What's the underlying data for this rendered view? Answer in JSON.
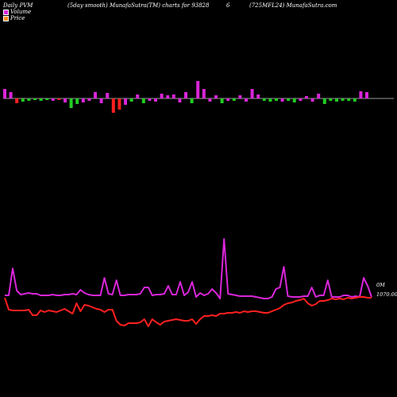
{
  "header": {
    "left": "Daily PVM",
    "center": "(5day smooth) MunafaSutra(TM) charts for 93828",
    "code": "6",
    "right": "(725MFL24) MunafaSutra.com"
  },
  "legend": {
    "volume_label": "Volume",
    "price_label": "Price",
    "volume_color": "#d926d9",
    "price_color": "#ff8c1a"
  },
  "chart_data": {
    "type": "bar",
    "baseline_note": "volume bars drawn above/below a zero line; magenta up, green down, red down-price",
    "volume_bars": [
      {
        "v": 12,
        "c": "magenta"
      },
      {
        "v": 8,
        "c": "magenta"
      },
      {
        "v": -6,
        "c": "red"
      },
      {
        "v": -4,
        "c": "green"
      },
      {
        "v": -3,
        "c": "green"
      },
      {
        "v": -2,
        "c": "green"
      },
      {
        "v": -3,
        "c": "green"
      },
      {
        "v": -2,
        "c": "green"
      },
      {
        "v": -3,
        "c": "magenta"
      },
      {
        "v": -2,
        "c": "red"
      },
      {
        "v": -5,
        "c": "magenta"
      },
      {
        "v": -12,
        "c": "green"
      },
      {
        "v": -7,
        "c": "green"
      },
      {
        "v": -5,
        "c": "magenta"
      },
      {
        "v": -3,
        "c": "magenta"
      },
      {
        "v": 8,
        "c": "magenta"
      },
      {
        "v": -6,
        "c": "magenta"
      },
      {
        "v": 7,
        "c": "magenta"
      },
      {
        "v": -18,
        "c": "red"
      },
      {
        "v": -14,
        "c": "red"
      },
      {
        "v": -8,
        "c": "magenta"
      },
      {
        "v": -4,
        "c": "green"
      },
      {
        "v": 5,
        "c": "magenta"
      },
      {
        "v": -6,
        "c": "green"
      },
      {
        "v": -3,
        "c": "magenta"
      },
      {
        "v": -4,
        "c": "magenta"
      },
      {
        "v": 6,
        "c": "magenta"
      },
      {
        "v": 4,
        "c": "magenta"
      },
      {
        "v": 5,
        "c": "magenta"
      },
      {
        "v": -5,
        "c": "magenta"
      },
      {
        "v": 8,
        "c": "magenta"
      },
      {
        "v": -6,
        "c": "green"
      },
      {
        "v": 22,
        "c": "magenta"
      },
      {
        "v": 12,
        "c": "magenta"
      },
      {
        "v": -4,
        "c": "magenta"
      },
      {
        "v": 4,
        "c": "magenta"
      },
      {
        "v": -6,
        "c": "green"
      },
      {
        "v": -3,
        "c": "magenta"
      },
      {
        "v": -3,
        "c": "green"
      },
      {
        "v": 4,
        "c": "magenta"
      },
      {
        "v": -4,
        "c": "magenta"
      },
      {
        "v": 12,
        "c": "magenta"
      },
      {
        "v": 5,
        "c": "magenta"
      },
      {
        "v": -3,
        "c": "green"
      },
      {
        "v": -4,
        "c": "green"
      },
      {
        "v": -3,
        "c": "green"
      },
      {
        "v": -4,
        "c": "magenta"
      },
      {
        "v": -3,
        "c": "green"
      },
      {
        "v": -5,
        "c": "green"
      },
      {
        "v": -3,
        "c": "magenta"
      },
      {
        "v": 3,
        "c": "magenta"
      },
      {
        "v": -4,
        "c": "magenta"
      },
      {
        "v": 6,
        "c": "magenta"
      },
      {
        "v": -7,
        "c": "green"
      },
      {
        "v": -3,
        "c": "green"
      },
      {
        "v": -4,
        "c": "green"
      },
      {
        "v": -3,
        "c": "green"
      },
      {
        "v": -3,
        "c": "green"
      },
      {
        "v": -4,
        "c": "green"
      },
      {
        "v": 9,
        "c": "magenta"
      },
      {
        "v": 8,
        "c": "magenta"
      }
    ],
    "volume_line": [
      372,
      372,
      338,
      366,
      371,
      370,
      369,
      370,
      370,
      372,
      372,
      372,
      371,
      372,
      372,
      371,
      371,
      370,
      371,
      365,
      369,
      371,
      372,
      372,
      372,
      350,
      370,
      371,
      353,
      372,
      372,
      371,
      371,
      371,
      370,
      362,
      362,
      372,
      371,
      371,
      370,
      360,
      371,
      371,
      355,
      372,
      368,
      355,
      374,
      369,
      372,
      370,
      364,
      369,
      376,
      301,
      370,
      371,
      372,
      373,
      373,
      373,
      373,
      374,
      375,
      376,
      376,
      374,
      364,
      362,
      336,
      373,
      374,
      374,
      374,
      373,
      373,
      362,
      374,
      372,
      372,
      353,
      374,
      374,
      374,
      372,
      372,
      374,
      373,
      374,
      350,
      360,
      374
    ],
    "price_line": [
      375,
      390,
      391,
      391,
      391,
      391,
      390,
      397,
      397,
      391,
      393,
      391,
      392,
      393,
      391,
      389,
      392,
      395,
      382,
      392,
      384,
      385,
      387,
      389,
      390,
      393,
      390,
      390,
      404,
      409,
      410,
      407,
      407,
      407,
      406,
      402,
      411,
      402,
      406,
      409,
      405,
      404,
      403,
      402,
      403,
      404,
      404,
      402,
      408,
      402,
      398,
      398,
      397,
      398,
      395,
      395,
      394,
      394,
      393,
      394,
      392,
      393,
      392,
      392,
      393,
      394,
      394,
      392,
      390,
      388,
      384,
      382,
      381,
      379,
      378,
      376,
      382,
      385,
      383,
      379,
      379,
      378,
      376,
      377,
      376,
      377,
      375,
      376,
      375,
      374,
      374,
      375,
      375
    ],
    "annotations": {
      "volume_value": "0M",
      "price_value": "1070.00"
    }
  }
}
